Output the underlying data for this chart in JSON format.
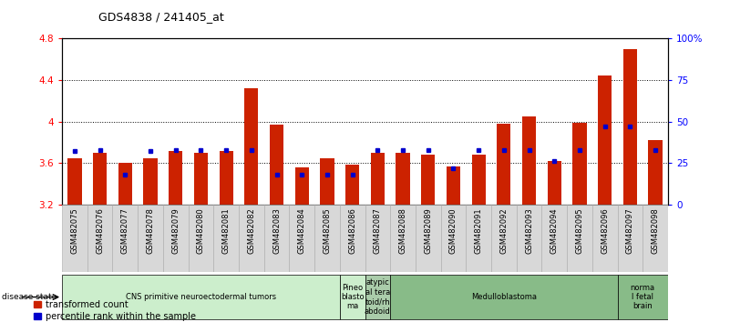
{
  "title": "GDS4838 / 241405_at",
  "samples": [
    "GSM482075",
    "GSM482076",
    "GSM482077",
    "GSM482078",
    "GSM482079",
    "GSM482080",
    "GSM482081",
    "GSM482082",
    "GSM482083",
    "GSM482084",
    "GSM482085",
    "GSM482086",
    "GSM482087",
    "GSM482088",
    "GSM482089",
    "GSM482090",
    "GSM482091",
    "GSM482092",
    "GSM482093",
    "GSM482094",
    "GSM482095",
    "GSM482096",
    "GSM482097",
    "GSM482098"
  ],
  "transformed_count": [
    3.65,
    3.7,
    3.6,
    3.65,
    3.72,
    3.7,
    3.72,
    4.32,
    3.97,
    3.56,
    3.65,
    3.58,
    3.7,
    3.7,
    3.68,
    3.57,
    3.68,
    3.98,
    4.05,
    3.62,
    3.99,
    4.44,
    4.7,
    3.82
  ],
  "percentile_rank": [
    32,
    33,
    18,
    32,
    33,
    33,
    33,
    33,
    18,
    18,
    18,
    18,
    33,
    33,
    33,
    22,
    33,
    33,
    33,
    26,
    33,
    47,
    47,
    33
  ],
  "ylim_left": [
    3.2,
    4.8
  ],
  "ylim_right": [
    0,
    100
  ],
  "yticks_left": [
    3.2,
    3.6,
    4.0,
    4.4,
    4.8
  ],
  "yticks_right": [
    0,
    25,
    50,
    75,
    100
  ],
  "ytick_labels_left": [
    "3.2",
    "3.6",
    "4",
    "4.4",
    "4.8"
  ],
  "ytick_labels_right": [
    "0",
    "25",
    "50",
    "75",
    "100%"
  ],
  "bar_color": "#cc2200",
  "dot_color": "#0000cc",
  "disease_groups": [
    {
      "label": "CNS primitive neuroectodermal tumors",
      "start": 0,
      "end": 11,
      "color": "#cceecc"
    },
    {
      "label": "Pineo\nblasto\nma",
      "start": 11,
      "end": 12,
      "color": "#cceecc"
    },
    {
      "label": "atypic\nal tera\ntoid/rh\nabdoid",
      "start": 12,
      "end": 13,
      "color": "#aaccaa"
    },
    {
      "label": "Medulloblastoma",
      "start": 13,
      "end": 22,
      "color": "#88bb88"
    },
    {
      "label": "norma\nl fetal\nbrain",
      "start": 22,
      "end": 24,
      "color": "#88bb88"
    }
  ],
  "legend_items": [
    {
      "label": "transformed count",
      "color": "#cc2200"
    },
    {
      "label": "percentile rank within the sample",
      "color": "#0000cc"
    }
  ],
  "bar_width": 0.55
}
